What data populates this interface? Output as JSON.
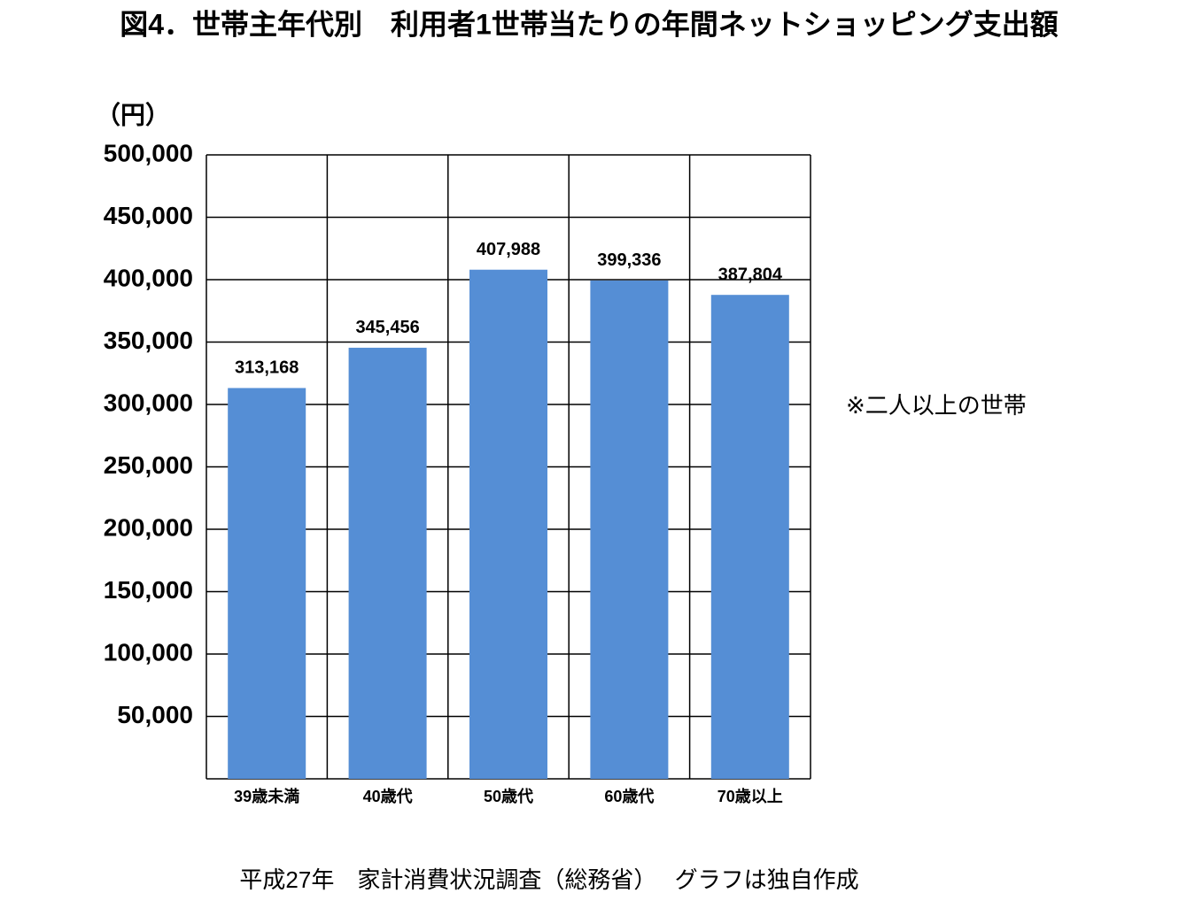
{
  "chart_data": {
    "type": "bar",
    "title": "図4．世帯主年代別　利用者1世帯当たりの年間ネットショッピング支出額",
    "y_label": "（円）",
    "categories": [
      "39歳未満",
      "40歳代",
      "50歳代",
      "60歳代",
      "70歳以上"
    ],
    "values": [
      313168,
      345456,
      407988,
      399336,
      387804
    ],
    "value_labels": [
      "313,168",
      "345,456",
      "407,988",
      "399,336",
      "387,804"
    ],
    "color": "#558ed5",
    "ylim": [
      0,
      500000
    ],
    "yticks": [
      {
        "value": 50000,
        "label": "50,000"
      },
      {
        "value": 100000,
        "label": "100,000"
      },
      {
        "value": 150000,
        "label": "150,000"
      },
      {
        "value": 200000,
        "label": "200,000"
      },
      {
        "value": 250000,
        "label": "250,000"
      },
      {
        "value": 300000,
        "label": "300,000"
      },
      {
        "value": 350000,
        "label": "350,000"
      },
      {
        "value": 400000,
        "label": "400,000"
      },
      {
        "value": 450000,
        "label": "450,000"
      },
      {
        "value": 500000,
        "label": "500,000"
      }
    ],
    "grid": true,
    "note": "※二人以上の世帯",
    "source": "平成27年　家計消費状況調査（総務省）　 グラフは独自作成"
  }
}
